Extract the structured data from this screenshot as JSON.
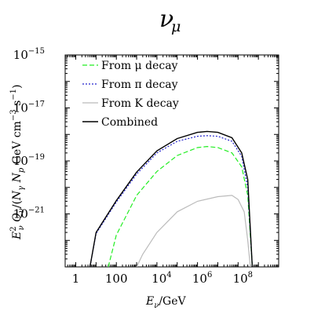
{
  "chart_data": {
    "type": "line",
    "title": "ν",
    "title_sub": "μ",
    "xlabel": "E_ν/GeV",
    "ylabel": "E_ν^2 Q_ν/(N_γ N_p GeV cm^-3 s^-1)",
    "xscale": "log",
    "yscale": "log",
    "xlim": [
      0.3,
      10000000000.0
    ],
    "ylim": [
      1e-23,
      1e-15
    ],
    "x_ticks": [
      {
        "value": 1,
        "base": "1",
        "exp": ""
      },
      {
        "value": 100,
        "base": "100",
        "exp": ""
      },
      {
        "value": 10000,
        "base": "10",
        "exp": "4"
      },
      {
        "value": 1000000,
        "base": "10",
        "exp": "6"
      },
      {
        "value": 100000000,
        "base": "10",
        "exp": "8"
      }
    ],
    "y_ticks": [
      {
        "value": 1e-21,
        "base": "10",
        "exp": "−21"
      },
      {
        "value": 1e-19,
        "base": "10",
        "exp": "−19"
      },
      {
        "value": 1e-17,
        "base": "10",
        "exp": "−17"
      },
      {
        "value": 1e-15,
        "base": "10",
        "exp": "−15"
      }
    ],
    "legend_position": "top-left",
    "series": [
      {
        "name": "From μ decay",
        "color": "#22ee22",
        "dash": "6,3",
        "points": [
          [
            40,
            1e-23
          ],
          [
            100,
            1.6e-22
          ],
          [
            1000,
            5e-21
          ],
          [
            10000,
            4e-20
          ],
          [
            100000,
            1.6e-19
          ],
          [
            1000000,
            3.2e-19
          ],
          [
            3000000,
            3.5e-19
          ],
          [
            10000000,
            3.2e-19
          ],
          [
            50000000,
            2e-19
          ],
          [
            150000000,
            6e-20
          ],
          [
            300000000,
            5e-21
          ],
          [
            500000000,
            1e-23
          ]
        ]
      },
      {
        "name": "From π decay",
        "color": "#2222cc",
        "dash": "2,2",
        "points": [
          [
            5,
            1e-23
          ],
          [
            10,
            1.8e-22
          ],
          [
            100,
            2.8e-21
          ],
          [
            1000,
            3.2e-20
          ],
          [
            10000,
            2e-19
          ],
          [
            100000,
            5.5e-19
          ],
          [
            1000000,
            8.5e-19
          ],
          [
            3000000,
            9e-19
          ],
          [
            10000000,
            8.5e-19
          ],
          [
            50000000,
            5.5e-19
          ],
          [
            150000000,
            1.5e-19
          ],
          [
            300000000,
            1e-20
          ],
          [
            500000000,
            1e-23
          ]
        ]
      },
      {
        "name": "From K decay",
        "color": "#bbbbbb",
        "dash": "",
        "points": [
          [
            1000,
            1e-23
          ],
          [
            2000,
            3e-23
          ],
          [
            10000,
            2e-22
          ],
          [
            100000,
            1.2e-21
          ],
          [
            1000000,
            3e-21
          ],
          [
            10000000,
            4.5e-21
          ],
          [
            50000000,
            5e-21
          ],
          [
            100000000,
            3.5e-21
          ],
          [
            200000000,
            1.2e-21
          ],
          [
            300000000,
            1e-22
          ],
          [
            400000000,
            1e-23
          ]
        ]
      },
      {
        "name": "Combined",
        "color": "#000000",
        "dash": "",
        "points": [
          [
            5,
            1e-23
          ],
          [
            10,
            2e-22
          ],
          [
            100,
            3.2e-21
          ],
          [
            1000,
            3.8e-20
          ],
          [
            10000,
            2.4e-19
          ],
          [
            100000,
            7e-19
          ],
          [
            1000000,
            1.2e-18
          ],
          [
            3000000,
            1.3e-18
          ],
          [
            10000000,
            1.2e-18
          ],
          [
            50000000,
            7.5e-19
          ],
          [
            150000000,
            2e-19
          ],
          [
            300000000,
            2e-20
          ],
          [
            500000000,
            1e-23
          ]
        ]
      }
    ]
  }
}
